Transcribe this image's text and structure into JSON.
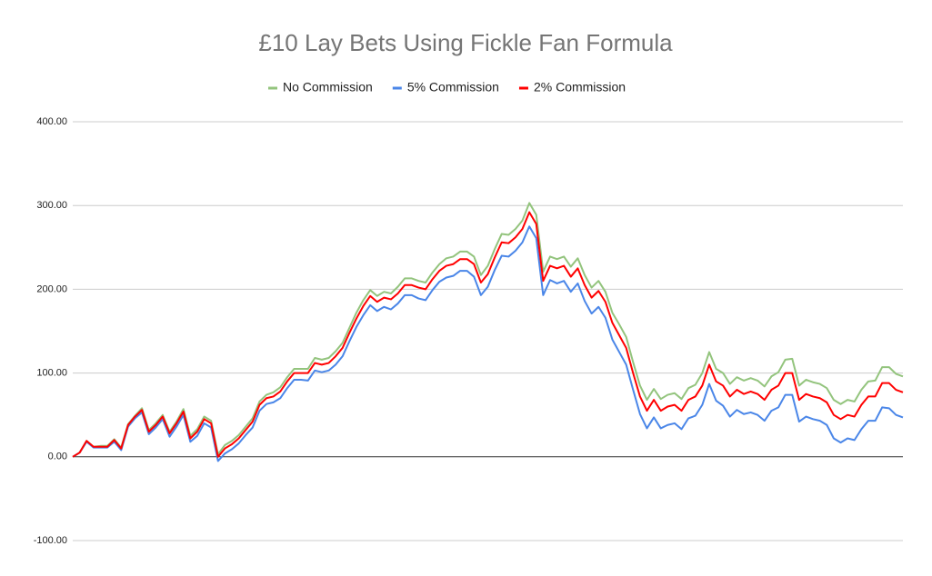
{
  "chart_data": {
    "type": "line",
    "title": "£10 Lay Bets Using Fickle Fan Formula",
    "ylim": [
      -100,
      400
    ],
    "yticks": [
      {
        "value": -100,
        "label": "-100.00"
      },
      {
        "value": 0,
        "label": "0.00"
      },
      {
        "value": 100,
        "label": "100.00"
      },
      {
        "value": 200,
        "label": "200.00"
      },
      {
        "value": 300,
        "label": "300.00"
      },
      {
        "value": 400,
        "label": "400.00"
      }
    ],
    "grid": true,
    "legend": "top",
    "series": [
      {
        "name": "No Commission",
        "color": "#93c47d",
        "values": [
          0,
          5,
          19,
          12,
          13,
          13,
          21,
          11,
          39,
          49,
          58,
          32,
          40,
          50,
          30,
          42,
          57,
          25,
          33,
          48,
          43,
          3,
          14,
          19,
          26,
          36,
          46,
          66,
          74,
          77,
          83,
          95,
          105,
          105,
          105,
          118,
          116,
          118,
          126,
          136,
          154,
          172,
          187,
          199,
          192,
          197,
          195,
          203,
          213,
          213,
          210,
          208,
          220,
          230,
          237,
          239,
          245,
          245,
          239,
          217,
          228,
          248,
          266,
          265,
          272,
          282,
          303,
          289,
          221,
          239,
          236,
          239,
          227,
          237,
          217,
          202,
          210,
          197,
          172,
          158,
          143,
          113,
          85,
          68,
          81,
          69,
          74,
          76,
          69,
          82,
          86,
          100,
          125,
          105,
          100,
          87,
          95,
          91,
          94,
          91,
          84,
          96,
          101,
          116,
          117,
          85,
          92,
          89,
          87,
          82,
          68,
          63,
          68,
          66,
          80,
          90,
          91,
          107,
          107,
          99,
          96
        ]
      },
      {
        "name": "5% Commission",
        "color": "#4a86e8",
        "values": [
          0,
          5,
          18,
          11,
          11,
          11,
          18,
          8,
          36,
          46,
          53,
          27,
          35,
          45,
          24,
          36,
          50,
          18,
          25,
          40,
          35,
          -5,
          4,
          9,
          16,
          26,
          35,
          55,
          63,
          65,
          70,
          82,
          92,
          92,
          91,
          103,
          101,
          103,
          110,
          120,
          138,
          155,
          169,
          181,
          174,
          179,
          176,
          183,
          193,
          193,
          189,
          187,
          199,
          209,
          214,
          216,
          222,
          222,
          215,
          193,
          203,
          223,
          240,
          239,
          246,
          256,
          275,
          261,
          193,
          211,
          207,
          210,
          197,
          207,
          186,
          171,
          179,
          166,
          140,
          125,
          110,
          80,
          51,
          34,
          47,
          34,
          38,
          40,
          33,
          46,
          49,
          62,
          87,
          67,
          61,
          48,
          56,
          51,
          53,
          50,
          43,
          55,
          59,
          74,
          74,
          42,
          48,
          45,
          43,
          38,
          22,
          17,
          22,
          20,
          33,
          43,
          43,
          59,
          58,
          50,
          47
        ]
      },
      {
        "name": "2% Commission",
        "color": "#ff0000",
        "values": [
          0,
          5,
          19,
          12,
          12,
          12,
          20,
          10,
          38,
          48,
          56,
          30,
          38,
          48,
          28,
          40,
          54,
          22,
          30,
          45,
          40,
          0,
          10,
          15,
          22,
          32,
          42,
          62,
          70,
          72,
          78,
          90,
          100,
          100,
          100,
          112,
          110,
          112,
          120,
          130,
          148,
          165,
          180,
          192,
          185,
          190,
          188,
          195,
          205,
          205,
          202,
          200,
          212,
          222,
          228,
          230,
          236,
          236,
          230,
          208,
          218,
          238,
          256,
          255,
          262,
          272,
          292,
          278,
          210,
          228,
          225,
          228,
          215,
          225,
          205,
          190,
          198,
          185,
          160,
          145,
          130,
          100,
          72,
          55,
          68,
          55,
          60,
          62,
          55,
          68,
          72,
          85,
          110,
          90,
          85,
          72,
          80,
          75,
          78,
          75,
          68,
          80,
          85,
          100,
          100,
          68,
          75,
          72,
          70,
          65,
          50,
          45,
          50,
          48,
          62,
          72,
          72,
          88,
          88,
          80,
          77
        ]
      }
    ]
  }
}
